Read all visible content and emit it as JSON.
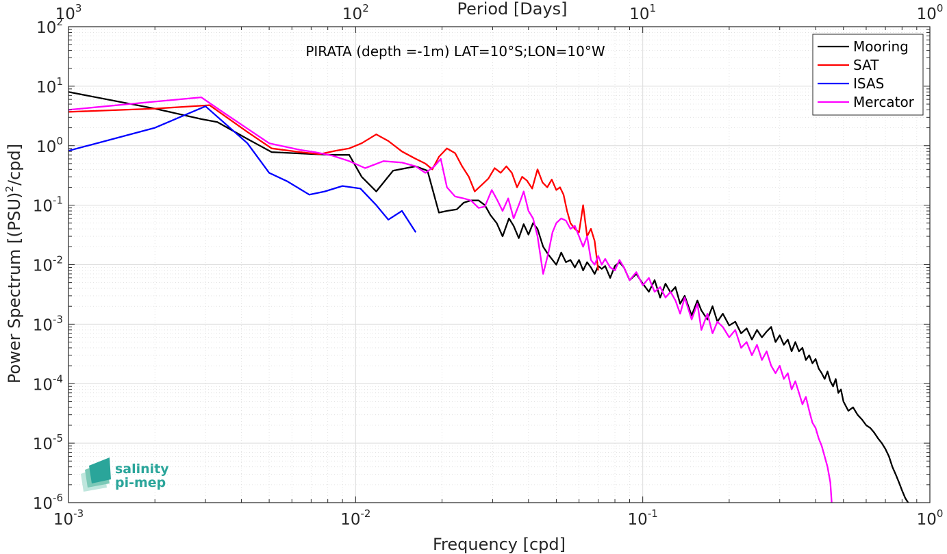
{
  "chart_data": {
    "type": "line",
    "title": "PIRATA (depth =-1m) LAT=10°S;LON=10°W",
    "xlabel": "Frequency [cpd]",
    "ylabel_main": "Power Spectrum [(PSU)",
    "ylabel_exp": "2",
    "ylabel_tail": "/cpd]",
    "x2label": "Period [Days]",
    "x_scale": "log",
    "y_scale": "log",
    "xlim": [
      0.001,
      1
    ],
    "ylim": [
      1e-06,
      100
    ],
    "grid": true,
    "legend_position": "top-right",
    "x_ticks": [
      {
        "base": "10",
        "exp": "-3",
        "value": 0.001
      },
      {
        "base": "10",
        "exp": "-2",
        "value": 0.01
      },
      {
        "base": "10",
        "exp": "-1",
        "value": 0.1
      },
      {
        "base": "10",
        "exp": "0",
        "value": 1
      }
    ],
    "x2_ticks": [
      {
        "base": "10",
        "exp": "3",
        "value": 1000
      },
      {
        "base": "10",
        "exp": "2",
        "value": 100
      },
      {
        "base": "10",
        "exp": "1",
        "value": 10
      },
      {
        "base": "10",
        "exp": "0",
        "value": 1
      }
    ],
    "y_ticks": [
      {
        "base": "10",
        "exp": "2",
        "value": 100
      },
      {
        "base": "10",
        "exp": "1",
        "value": 10
      },
      {
        "base": "10",
        "exp": "0",
        "value": 1
      },
      {
        "base": "10",
        "exp": "-1",
        "value": 0.1
      },
      {
        "base": "10",
        "exp": "-2",
        "value": 0.01
      },
      {
        "base": "10",
        "exp": "-3",
        "value": 0.001
      },
      {
        "base": "10",
        "exp": "-4",
        "value": 0.0001
      },
      {
        "base": "10",
        "exp": "-5",
        "value": 1e-05
      },
      {
        "base": "10",
        "exp": "-6",
        "value": 1e-06
      }
    ],
    "series": [
      {
        "name": "Mooring",
        "color": "#000000",
        "x": [
          0.001,
          0.002,
          0.0029,
          0.0033,
          0.0042,
          0.0051,
          0.0064,
          0.0072,
          0.0083,
          0.0095,
          0.0105,
          0.0118,
          0.0135,
          0.015,
          0.0162,
          0.0178,
          0.0195,
          0.0208,
          0.0225,
          0.0238,
          0.0252,
          0.0268,
          0.0282,
          0.0295,
          0.031,
          0.0325,
          0.0342,
          0.0355,
          0.037,
          0.0385,
          0.04,
          0.0415,
          0.043,
          0.045,
          0.0468,
          0.0485,
          0.05,
          0.052,
          0.054,
          0.056,
          0.058,
          0.06,
          0.062,
          0.064,
          0.066,
          0.068,
          0.07,
          0.072,
          0.074,
          0.077,
          0.08,
          0.083,
          0.086,
          0.09,
          0.095,
          0.1,
          0.105,
          0.11,
          0.115,
          0.12,
          0.125,
          0.13,
          0.135,
          0.14,
          0.148,
          0.155,
          0.16,
          0.168,
          0.175,
          0.182,
          0.19,
          0.2,
          0.21,
          0.22,
          0.23,
          0.24,
          0.25,
          0.26,
          0.27,
          0.28,
          0.29,
          0.3,
          0.31,
          0.32,
          0.33,
          0.34,
          0.35,
          0.36,
          0.37,
          0.38,
          0.39,
          0.4,
          0.41,
          0.42,
          0.43,
          0.44,
          0.45,
          0.46,
          0.47,
          0.48,
          0.49,
          0.5,
          0.52,
          0.54,
          0.56,
          0.58,
          0.6,
          0.62,
          0.64,
          0.66,
          0.68,
          0.7,
          0.72,
          0.74,
          0.76,
          0.78,
          0.8,
          0.82,
          0.84
        ],
        "y": [
          8,
          4.2,
          2.8,
          2.5,
          1.3,
          0.78,
          0.74,
          0.72,
          0.7,
          0.7,
          0.3,
          0.17,
          0.38,
          0.42,
          0.45,
          0.38,
          0.075,
          0.08,
          0.085,
          0.11,
          0.12,
          0.12,
          0.1,
          0.068,
          0.05,
          0.03,
          0.06,
          0.045,
          0.028,
          0.048,
          0.032,
          0.05,
          0.04,
          0.02,
          0.015,
          0.012,
          0.01,
          0.016,
          0.011,
          0.012,
          0.009,
          0.012,
          0.008,
          0.011,
          0.009,
          0.007,
          0.0095,
          0.0085,
          0.0095,
          0.006,
          0.0095,
          0.011,
          0.009,
          0.0055,
          0.007,
          0.0048,
          0.0035,
          0.0055,
          0.0028,
          0.0048,
          0.0034,
          0.0042,
          0.0022,
          0.003,
          0.0014,
          0.0025,
          0.0017,
          0.0012,
          0.002,
          0.0011,
          0.0015,
          0.00095,
          0.0011,
          0.0007,
          0.00085,
          0.00055,
          0.0008,
          0.0006,
          0.00075,
          0.0009,
          0.0005,
          0.00065,
          0.00045,
          0.00055,
          0.00035,
          0.0005,
          0.00035,
          0.0004,
          0.00025,
          0.0003,
          0.00022,
          0.00026,
          0.00018,
          0.00015,
          0.00012,
          0.00016,
          0.00011,
          9e-05,
          0.00012,
          7e-05,
          8e-05,
          5e-05,
          3.5e-05,
          4e-05,
          3e-05,
          2.5e-05,
          2e-05,
          1.8e-05,
          1.5e-05,
          1.2e-05,
          1e-05,
          8e-06,
          6e-06,
          4e-06,
          3e-06,
          2.2e-06,
          1.6e-06,
          1.2e-06,
          1e-06
        ]
      },
      {
        "name": "SAT",
        "color": "#ff0000",
        "x": [
          0.001,
          0.002,
          0.0031,
          0.0042,
          0.0051,
          0.0064,
          0.0075,
          0.0085,
          0.0095,
          0.0105,
          0.0118,
          0.013,
          0.0145,
          0.016,
          0.0175,
          0.0185,
          0.0195,
          0.0208,
          0.0222,
          0.0235,
          0.0248,
          0.026,
          0.0275,
          0.029,
          0.0305,
          0.032,
          0.0335,
          0.035,
          0.0365,
          0.038,
          0.0395,
          0.0412,
          0.043,
          0.0448,
          0.0465,
          0.0482,
          0.05,
          0.0515,
          0.053,
          0.0545,
          0.056,
          0.058,
          0.06,
          0.062,
          0.064,
          0.066,
          0.068,
          0.07
        ],
        "y": [
          3.7,
          4.2,
          4.8,
          1.7,
          0.9,
          0.78,
          0.72,
          0.82,
          0.9,
          1.1,
          1.55,
          1.2,
          0.8,
          0.62,
          0.5,
          0.4,
          0.65,
          0.9,
          0.75,
          0.45,
          0.3,
          0.17,
          0.22,
          0.28,
          0.42,
          0.35,
          0.45,
          0.35,
          0.2,
          0.3,
          0.26,
          0.19,
          0.4,
          0.24,
          0.2,
          0.27,
          0.18,
          0.2,
          0.15,
          0.08,
          0.05,
          0.04,
          0.035,
          0.1,
          0.03,
          0.04,
          0.025,
          0.008
        ]
      },
      {
        "name": "ISAS",
        "color": "#0000ff",
        "x": [
          0.001,
          0.002,
          0.003,
          0.0042,
          0.005,
          0.0058,
          0.0069,
          0.0078,
          0.009,
          0.0104,
          0.0118,
          0.013,
          0.0145,
          0.0162
        ],
        "y": [
          0.82,
          2.0,
          4.6,
          1.1,
          0.35,
          0.25,
          0.15,
          0.17,
          0.21,
          0.19,
          0.1,
          0.057,
          0.08,
          0.035
        ]
      },
      {
        "name": "Mercator",
        "color": "#ff00ff",
        "x": [
          0.001,
          0.002,
          0.0029,
          0.0035,
          0.005,
          0.0064,
          0.0072,
          0.0083,
          0.0095,
          0.0108,
          0.0125,
          0.0145,
          0.0162,
          0.0175,
          0.0188,
          0.0198,
          0.0208,
          0.0222,
          0.0238,
          0.0252,
          0.0268,
          0.0282,
          0.0298,
          0.0312,
          0.0325,
          0.034,
          0.0355,
          0.037,
          0.0385,
          0.04,
          0.0415,
          0.043,
          0.045,
          0.0468,
          0.0485,
          0.05,
          0.052,
          0.054,
          0.056,
          0.058,
          0.06,
          0.062,
          0.064,
          0.066,
          0.068,
          0.07,
          0.072,
          0.074,
          0.077,
          0.08,
          0.083,
          0.086,
          0.09,
          0.095,
          0.1,
          0.105,
          0.11,
          0.115,
          0.12,
          0.125,
          0.13,
          0.135,
          0.14,
          0.148,
          0.155,
          0.16,
          0.168,
          0.175,
          0.182,
          0.19,
          0.2,
          0.21,
          0.22,
          0.23,
          0.24,
          0.25,
          0.26,
          0.27,
          0.28,
          0.29,
          0.3,
          0.31,
          0.32,
          0.33,
          0.34,
          0.35,
          0.36,
          0.37,
          0.38,
          0.39,
          0.4,
          0.41,
          0.42,
          0.43,
          0.44,
          0.45,
          0.455
        ],
        "y": [
          4,
          5.5,
          6.5,
          3.5,
          1.1,
          0.85,
          0.78,
          0.68,
          0.55,
          0.42,
          0.55,
          0.52,
          0.45,
          0.35,
          0.45,
          0.6,
          0.2,
          0.14,
          0.13,
          0.12,
          0.09,
          0.095,
          0.18,
          0.12,
          0.08,
          0.13,
          0.06,
          0.1,
          0.17,
          0.08,
          0.06,
          0.03,
          0.007,
          0.015,
          0.035,
          0.05,
          0.06,
          0.055,
          0.04,
          0.045,
          0.03,
          0.02,
          0.03,
          0.012,
          0.01,
          0.014,
          0.01,
          0.0125,
          0.009,
          0.008,
          0.012,
          0.009,
          0.0055,
          0.0075,
          0.0045,
          0.006,
          0.0035,
          0.0042,
          0.0028,
          0.0035,
          0.0025,
          0.0015,
          0.0028,
          0.0012,
          0.0022,
          0.0008,
          0.0015,
          0.0007,
          0.0011,
          0.0009,
          0.0006,
          0.0008,
          0.0004,
          0.0005,
          0.0003,
          0.00045,
          0.00025,
          0.00035,
          0.0002,
          0.00015,
          0.0002,
          0.00012,
          0.00015,
          8e-05,
          0.00011,
          7e-05,
          4.5e-05,
          6e-05,
          3.5e-05,
          2.2e-05,
          1.8e-05,
          1.2e-05,
          9e-06,
          6e-06,
          4e-06,
          2.2e-06,
          1e-06
        ]
      }
    ]
  },
  "logo": {
    "line1": "salinity",
    "line2": "pi-mep"
  }
}
